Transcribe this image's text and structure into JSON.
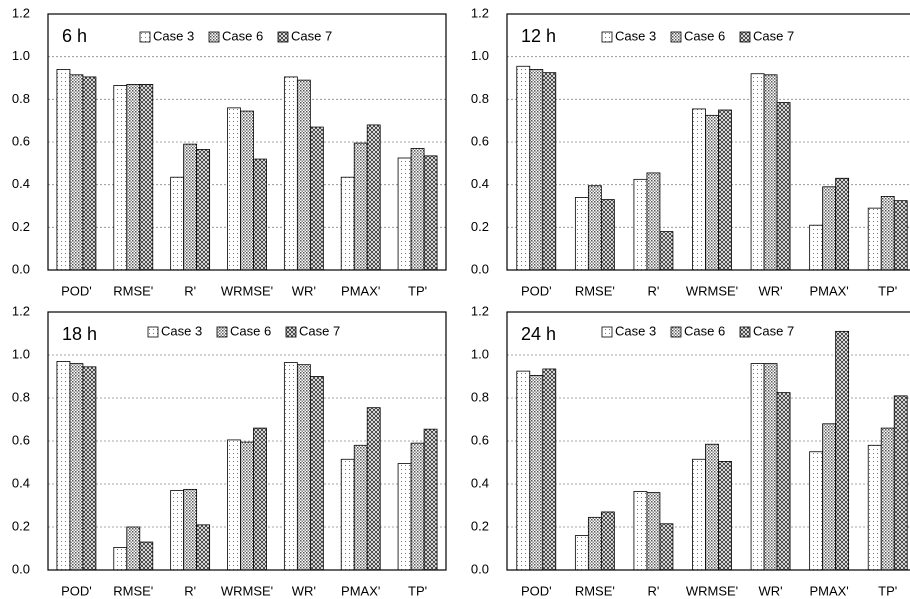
{
  "chart_data": [
    {
      "type": "bar",
      "title": "6 h",
      "categories": [
        "POD'",
        "RMSE'",
        "R'",
        "WRMSE'",
        "WR'",
        "PMAX'",
        "TP'"
      ],
      "series": [
        {
          "name": "Case 3",
          "values": [
            0.94,
            0.865,
            0.435,
            0.76,
            0.905,
            0.435,
            0.525
          ]
        },
        {
          "name": "Case 6",
          "values": [
            0.915,
            0.87,
            0.59,
            0.745,
            0.89,
            0.595,
            0.57
          ]
        },
        {
          "name": "Case 7",
          "values": [
            0.905,
            0.87,
            0.565,
            0.52,
            0.67,
            0.68,
            0.535
          ]
        }
      ],
      "ylim": [
        0,
        1.2
      ],
      "yticks": [
        {
          "value": 0,
          "label": "0.0"
        },
        {
          "value": 0.2,
          "label": "0.2"
        },
        {
          "value": 0.4,
          "label": "0.4"
        },
        {
          "value": 0.6,
          "label": "0.6"
        },
        {
          "value": 0.8,
          "label": "0.8"
        },
        {
          "value": 1,
          "label": "1.0"
        },
        {
          "value": 1.2,
          "label": "1.2"
        }
      ],
      "grid": true
    },
    {
      "type": "bar",
      "title": "12 h",
      "categories": [
        "POD'",
        "RMSE'",
        "R'",
        "WRMSE'",
        "WR'",
        "PMAX'",
        "TP'"
      ],
      "series": [
        {
          "name": "Case 3",
          "values": [
            0.955,
            0.34,
            0.425,
            0.755,
            0.92,
            0.21,
            0.29
          ]
        },
        {
          "name": "Case 6",
          "values": [
            0.94,
            0.395,
            0.455,
            0.725,
            0.915,
            0.39,
            0.345
          ]
        },
        {
          "name": "Case 7",
          "values": [
            0.925,
            0.33,
            0.18,
            0.75,
            0.785,
            0.43,
            0.325
          ]
        }
      ],
      "ylim": [
        0,
        1.2
      ],
      "yticks": [
        {
          "value": 0,
          "label": "0.0"
        },
        {
          "value": 0.2,
          "label": "0.2"
        },
        {
          "value": 0.4,
          "label": "0.4"
        },
        {
          "value": 0.6,
          "label": "0.6"
        },
        {
          "value": 0.8,
          "label": "0.8"
        },
        {
          "value": 1,
          "label": "1.0"
        },
        {
          "value": 1.2,
          "label": "1.2"
        }
      ],
      "grid": true
    },
    {
      "type": "bar",
      "title": "18 h",
      "categories": [
        "POD'",
        "RMSE'",
        "R'",
        "WRMSE'",
        "WR'",
        "PMAX'",
        "TP'"
      ],
      "series": [
        {
          "name": "Case 3",
          "values": [
            0.97,
            0.105,
            0.37,
            0.605,
            0.965,
            0.515,
            0.495
          ]
        },
        {
          "name": "Case 6",
          "values": [
            0.96,
            0.2,
            0.375,
            0.595,
            0.955,
            0.58,
            0.59
          ]
        },
        {
          "name": "Case 7",
          "values": [
            0.945,
            0.13,
            0.21,
            0.66,
            0.9,
            0.755,
            0.655
          ]
        }
      ],
      "ylim": [
        0,
        1.2
      ],
      "yticks": [
        {
          "value": 0,
          "label": "0.0"
        },
        {
          "value": 0.2,
          "label": "0.2"
        },
        {
          "value": 0.4,
          "label": "0.4"
        },
        {
          "value": 0.6,
          "label": "0.6"
        },
        {
          "value": 0.8,
          "label": "0.8"
        },
        {
          "value": 1,
          "label": "1.0"
        },
        {
          "value": 1.2,
          "label": "1.2"
        }
      ],
      "grid": true
    },
    {
      "type": "bar",
      "title": "24 h",
      "categories": [
        "POD'",
        "RMSE'",
        "R'",
        "WRMSE'",
        "WR'",
        "PMAX'",
        "TP'"
      ],
      "series": [
        {
          "name": "Case 3",
          "values": [
            0.925,
            0.16,
            0.365,
            0.515,
            0.96,
            0.55,
            0.58
          ]
        },
        {
          "name": "Case 6",
          "values": [
            0.905,
            0.245,
            0.36,
            0.585,
            0.96,
            0.68,
            0.66
          ]
        },
        {
          "name": "Case 7",
          "values": [
            0.935,
            0.27,
            0.215,
            0.505,
            0.825,
            1.11,
            0.81
          ]
        }
      ],
      "ylim": [
        0,
        1.2
      ],
      "yticks": [
        {
          "value": 0,
          "label": "0.0"
        },
        {
          "value": 0.2,
          "label": "0.2"
        },
        {
          "value": 0.4,
          "label": "0.4"
        },
        {
          "value": 0.6,
          "label": "0.6"
        },
        {
          "value": 0.8,
          "label": "0.8"
        },
        {
          "value": 1,
          "label": "1.0"
        },
        {
          "value": 1.2,
          "label": "1.2"
        }
      ],
      "grid": true
    }
  ]
}
